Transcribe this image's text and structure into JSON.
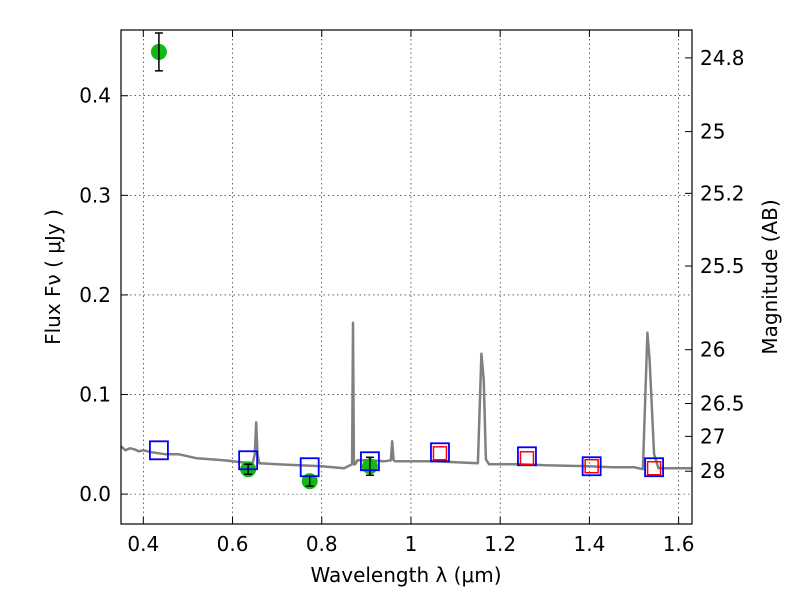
{
  "chart_data": {
    "type": "scatter",
    "xlabel": "Wavelength  λ (μm)",
    "ylabel": "Flux  Fν  ( μJy )",
    "y2label": "Magnitude (AB)",
    "xlim": [
      0.35,
      1.63
    ],
    "ylim": [
      -0.03,
      0.466
    ],
    "grid": true,
    "xticks": [
      0.4,
      0.6,
      0.8,
      1,
      1.2,
      1.4,
      1.6
    ],
    "xtick_labels": [
      "0.4",
      "0.6",
      "0.8",
      "1",
      "1.2",
      "1.4",
      "1.6"
    ],
    "yticks": [
      0.0,
      0.1,
      0.2,
      0.3,
      0.4
    ],
    "ytick_labels": [
      "0.0",
      "0.1",
      "0.2",
      "0.3",
      "0.4"
    ],
    "y2ticks": [
      {
        "label": "24.8",
        "flux": 0.438
      },
      {
        "label": "25",
        "flux": 0.364
      },
      {
        "label": "25.2",
        "flux": 0.302
      },
      {
        "label": "25.5",
        "flux": 0.229
      },
      {
        "label": "26",
        "flux": 0.145
      },
      {
        "label": "26.5",
        "flux": 0.091
      },
      {
        "label": "27",
        "flux": 0.058
      },
      {
        "label": "28",
        "flux": 0.023
      }
    ],
    "series": [
      {
        "kind": "line",
        "color": "#808080",
        "x": [
          0.35,
          0.36,
          0.37,
          0.38,
          0.39,
          0.4,
          0.42,
          0.45,
          0.48,
          0.5,
          0.52,
          0.55,
          0.58,
          0.6,
          0.62,
          0.645,
          0.65,
          0.653,
          0.656,
          0.66,
          0.7,
          0.75,
          0.8,
          0.85,
          0.868,
          0.87,
          0.872,
          0.875,
          0.88,
          0.9,
          0.94,
          0.955,
          0.958,
          0.961,
          0.965,
          1.0,
          1.05,
          1.1,
          1.15,
          1.158,
          1.163,
          1.168,
          1.175,
          1.2,
          1.25,
          1.3,
          1.4,
          1.45,
          1.5,
          1.52,
          1.53,
          1.535,
          1.545,
          1.555,
          1.6,
          1.63
        ],
        "y": [
          0.048,
          0.044,
          0.046,
          0.045,
          0.043,
          0.044,
          0.042,
          0.04,
          0.04,
          0.038,
          0.036,
          0.035,
          0.034,
          0.033,
          0.032,
          0.031,
          0.04,
          0.072,
          0.04,
          0.031,
          0.03,
          0.029,
          0.028,
          0.026,
          0.03,
          0.172,
          0.03,
          0.03,
          0.034,
          0.034,
          0.033,
          0.034,
          0.053,
          0.034,
          0.033,
          0.033,
          0.033,
          0.032,
          0.031,
          0.141,
          0.115,
          0.035,
          0.03,
          0.03,
          0.03,
          0.029,
          0.028,
          0.027,
          0.027,
          0.025,
          0.162,
          0.135,
          0.04,
          0.026,
          0.026,
          0.026
        ]
      },
      {
        "kind": "points",
        "marker": "circle",
        "color": "#14b814",
        "x": [
          0.435,
          0.635,
          0.773,
          0.908
        ],
        "y": [
          0.444,
          0.025,
          0.013,
          0.028
        ],
        "yerr": [
          0.019,
          0.005,
          0.005,
          0.009
        ]
      },
      {
        "kind": "points",
        "marker": "square",
        "color": "#0000ff",
        "x": [
          0.435,
          0.635,
          0.773,
          0.908,
          1.065,
          1.26,
          1.405,
          1.545
        ],
        "y": [
          0.044,
          0.034,
          0.027,
          0.033,
          0.042,
          0.038,
          0.028,
          0.027
        ]
      },
      {
        "kind": "points",
        "marker": "square",
        "color": "#ff0000",
        "x": [
          1.065,
          1.26,
          1.405,
          1.545
        ],
        "y": [
          0.041,
          0.036,
          0.028,
          0.026
        ]
      }
    ]
  }
}
